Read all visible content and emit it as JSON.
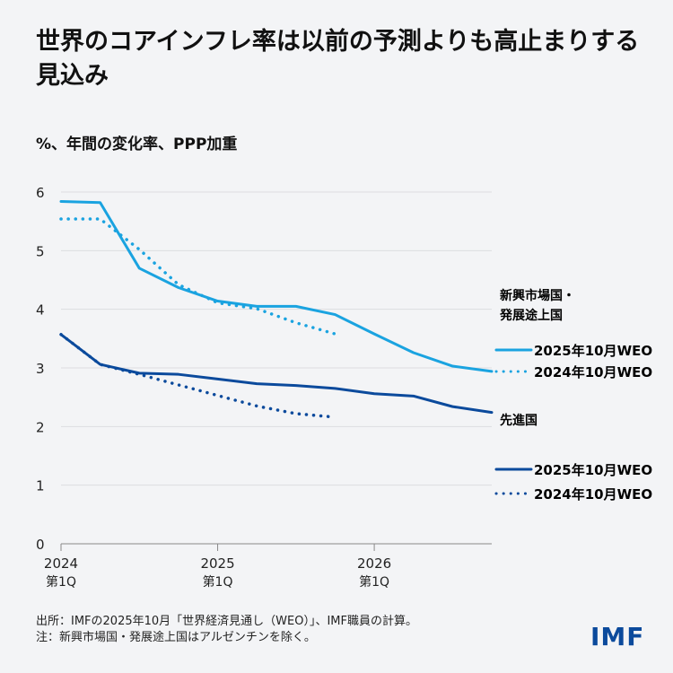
{
  "title": "世界のコアインフレ率は以前の予測よりも高止まりする見込み",
  "chart_data": {
    "type": "line",
    "ylabel": "%、年間の変化率、PPP加重",
    "ylim": [
      0,
      6
    ],
    "yticks": [
      "0",
      "1",
      "2",
      "3",
      "4",
      "5",
      "6"
    ],
    "grid": true,
    "x": [
      "2024Q1",
      "2024Q2",
      "2024Q3",
      "2024Q4",
      "2025Q1",
      "2025Q2",
      "2025Q3",
      "2025Q4",
      "2026Q1",
      "2026Q2",
      "2026Q3",
      "2026Q4"
    ],
    "xticks": [
      {
        "year": "2024",
        "q": "第1Q"
      },
      {
        "year": "2025",
        "q": "第1Q"
      },
      {
        "year": "2026",
        "q": "第1Q"
      }
    ],
    "groups": [
      {
        "name": "新興市場国・発展途上国",
        "color": "#1aa3e0",
        "series": [
          {
            "name": "2025年10月WEO",
            "style": "solid",
            "values": [
              5.84,
              5.82,
              4.7,
              4.37,
              4.14,
              4.05,
              4.05,
              3.91,
              3.58,
              3.26,
              3.03,
              2.94
            ]
          },
          {
            "name": "2024年10月WEO",
            "style": "dotted",
            "values": [
              5.54,
              5.54,
              5.02,
              4.42,
              4.11,
              4.01,
              3.77,
              3.58
            ]
          }
        ]
      },
      {
        "name": "先進国",
        "color": "#0b4a9c",
        "series": [
          {
            "name": "2025年10月WEO",
            "style": "solid",
            "values": [
              3.57,
              3.06,
              2.91,
              2.89,
              2.81,
              2.73,
              2.7,
              2.65,
              2.56,
              2.52,
              2.34,
              2.24
            ]
          },
          {
            "name": "2024年10月WEO",
            "style": "dotted",
            "values": [
              3.57,
              3.06,
              2.89,
              2.71,
              2.53,
              2.35,
              2.22,
              2.16
            ]
          }
        ]
      }
    ]
  },
  "source": "出所：IMFの2025年10月「世界経済見通し（WEO）」、IMF職員の計算。",
  "note": "注：新興市場国・発展途上国はアルゼンチンを除く。",
  "logo": "IMF"
}
